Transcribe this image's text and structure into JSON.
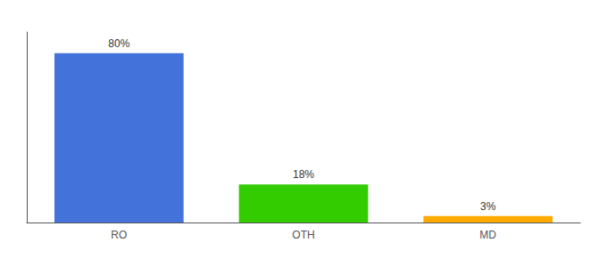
{
  "chart_data": {
    "type": "bar",
    "categories": [
      "RO",
      "OTH",
      "MD"
    ],
    "values": [
      80,
      18,
      3
    ],
    "value_labels": [
      "80%",
      "18%",
      "3%"
    ],
    "colors": [
      "#4472db",
      "#33cc00",
      "#ffaa00"
    ],
    "ylim": [
      0,
      90
    ],
    "grid": false,
    "data_labels": true,
    "tick_labels": "x"
  }
}
